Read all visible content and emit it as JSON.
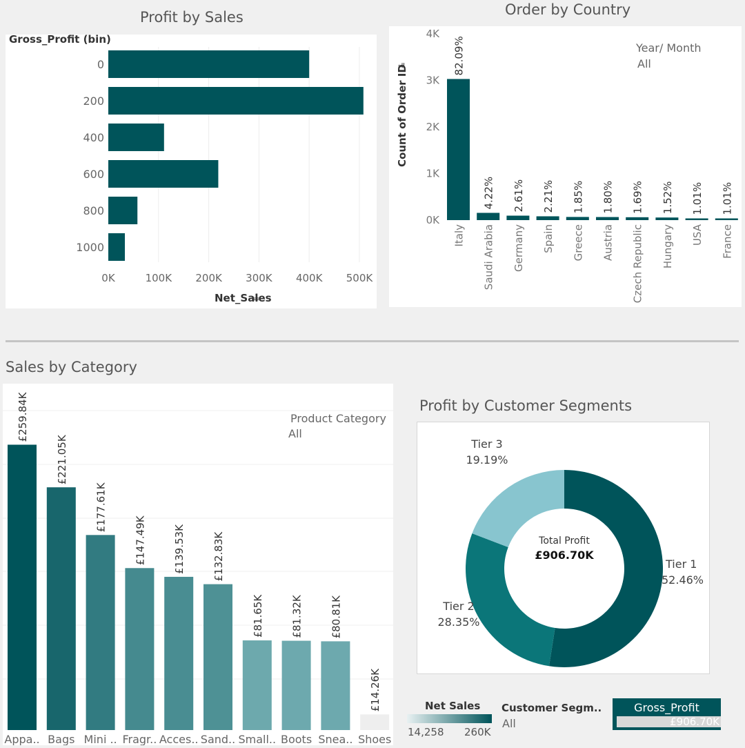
{
  "colors": {
    "teal_dark": "#00545a",
    "teal_mid": "#0b7679",
    "teal_light": "#88c5cf",
    "gray_bar": "#eeeeee"
  },
  "profit_by_sales": {
    "title": "Profit by Sales",
    "chart_data": {
      "type": "bar",
      "orientation": "horizontal",
      "title": "Profit by Sales",
      "ylabel": "Gross_Profit (bin)",
      "xlabel": "Net_Sales",
      "categories": [
        "0",
        "200",
        "400",
        "600",
        "800",
        "1000"
      ],
      "values": [
        400000,
        508000,
        111000,
        219000,
        58000,
        33000
      ],
      "xlim": [
        0,
        520000
      ],
      "xticks": [
        "0K",
        "100K",
        "200K",
        "300K",
        "400K",
        "500K"
      ],
      "grid": true
    }
  },
  "order_by_country": {
    "title": "Order by Country",
    "filter_label": "Year/ Month",
    "filter_value": "All",
    "chart_data": {
      "type": "bar",
      "title": "Order by Country",
      "ylabel": "Count of Order ID",
      "categories": [
        "Italy",
        "Saudi Arabia",
        "Germany",
        "Spain",
        "Greece",
        "Austria",
        "Czech Republic",
        "Hungary",
        "USA",
        "France"
      ],
      "values": [
        3030,
        156,
        96,
        82,
        68,
        66,
        62,
        56,
        37,
        37
      ],
      "data_labels": [
        "82.09%",
        "4.22%",
        "2.61%",
        "2.21%",
        "1.85%",
        "1.80%",
        "1.69%",
        "1.52%",
        "1.01%",
        "1.01%"
      ],
      "ylim": [
        0,
        4000
      ],
      "yticks": [
        "0K",
        "1K",
        "2K",
        "3K",
        "4K"
      ]
    }
  },
  "sales_by_category": {
    "title": "Sales by Category",
    "filter_label": "Product Category",
    "filter_value": "All",
    "chart_data": {
      "type": "bar",
      "title": "Sales by Category",
      "categories": [
        "Appa..",
        "Bags",
        "Mini ..",
        "Fragr..",
        "Acces..",
        "Sand..",
        "Small..",
        "Boots",
        "Snea..",
        "Shoes"
      ],
      "values": [
        259.84,
        221.05,
        177.61,
        147.49,
        139.53,
        132.83,
        81.65,
        81.32,
        80.81,
        14.26
      ],
      "data_labels": [
        "£259.84K",
        "£221.05K",
        "£177.61K",
        "£147.49K",
        "£139.53K",
        "£132.83K",
        "£81.65K",
        "£81.32K",
        "£80.81K",
        "£14.26K"
      ],
      "ylim": [
        0,
        320
      ]
    }
  },
  "profit_by_segments": {
    "title": "Profit by  Customer Segments",
    "center_label": "Total Profit",
    "center_value": "£906.70K",
    "chart_data": {
      "type": "pie",
      "title": "Profit by  Customer Segments",
      "categories": [
        "Tier 1",
        "Tier 2",
        "Tier 3"
      ],
      "values": [
        52.46,
        28.35,
        19.19
      ],
      "data_labels": [
        "52.46%",
        "28.35%",
        "19.19%"
      ],
      "colors": [
        "#00545a",
        "#0b7679",
        "#88c5cf"
      ]
    }
  },
  "legend_bar": {
    "net_sales_label": "Net Sales",
    "net_sales_min": "14,258",
    "net_sales_max": "260K",
    "segment_label": "Customer Segm..",
    "segment_value": "All",
    "gross_profit_label": "Gross_Profit",
    "gross_profit_value": "£906.70K"
  }
}
